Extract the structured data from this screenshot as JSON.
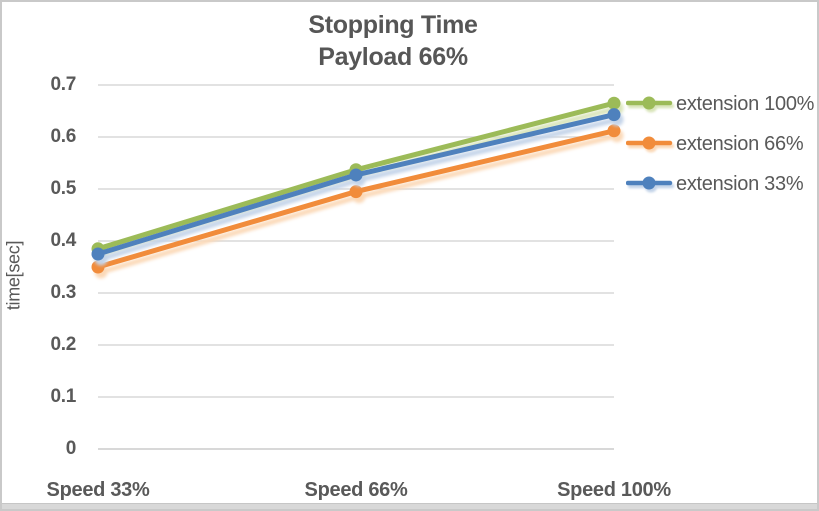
{
  "chart_data": {
    "type": "line",
    "title": "Stopping Time",
    "subtitle": "Payload 66%",
    "ylabel": "time[sec]",
    "xlabel": "",
    "categories": [
      "Speed 33%",
      "Speed 66%",
      "Speed 100%"
    ],
    "series": [
      {
        "name": "extension 100%",
        "color": "#9cbb58",
        "shadow_color": "#d9e5ba",
        "values": [
          0.385,
          0.537,
          0.665
        ]
      },
      {
        "name": "extension 66%",
        "color": "#f18c3b",
        "shadow_color": "#fbd9b8",
        "values": [
          0.35,
          0.495,
          0.612
        ]
      },
      {
        "name": "extension 33%",
        "color": "#4e81bd",
        "shadow_color": "#c4d4e9",
        "values": [
          0.375,
          0.527,
          0.643
        ]
      }
    ],
    "ylim": [
      0,
      0.7
    ],
    "yticks": [
      {
        "label": "0.7",
        "value": 0.7
      },
      {
        "label": "0.6",
        "value": 0.6
      },
      {
        "label": "0.5",
        "value": 0.5
      },
      {
        "label": "0.4",
        "value": 0.4
      },
      {
        "label": "0.3",
        "value": 0.3
      },
      {
        "label": "0.2",
        "value": 0.2
      },
      {
        "label": "0.1",
        "value": 0.1
      },
      {
        "label": "0",
        "value": 0.0
      }
    ],
    "grid": true,
    "legend_position": "right",
    "draw_order_note": "series drawn in array order; blue (extension 33%) on top"
  },
  "colors": {
    "text": "#595959",
    "title_text": "#565656",
    "gridline": "#d9d9d9",
    "axis_line": "#cccccc",
    "background": "#ffffff",
    "chart_border": "#c9c9c9"
  }
}
